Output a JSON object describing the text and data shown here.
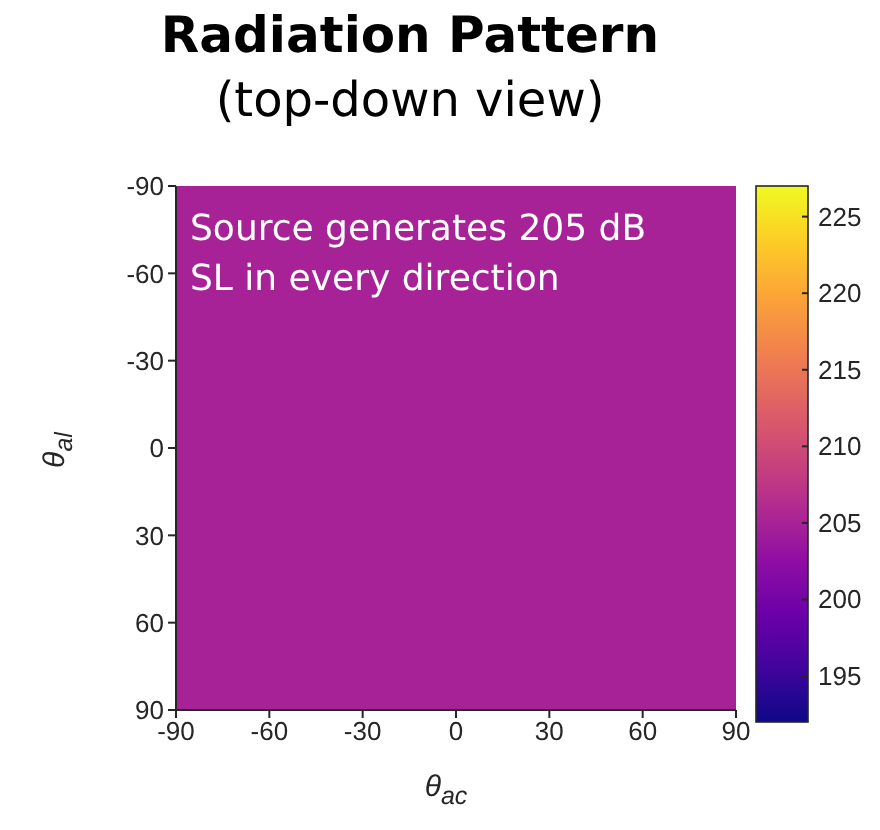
{
  "chart_data": {
    "type": "heatmap",
    "title": "Radiation Pattern",
    "subtitle": "(top-down view)",
    "xlabel": "θ$_{ac}$",
    "ylabel": "θ$_{al}$",
    "cells": [
      [
        205
      ]
    ],
    "xlim": [
      -90,
      90
    ],
    "ylim": [
      90,
      -90
    ],
    "xticks": [
      -90,
      -60,
      -30,
      0,
      30,
      60,
      90
    ],
    "yticks": [
      -90,
      -60,
      -30,
      0,
      30,
      60,
      90
    ],
    "clim": [
      192,
      227
    ],
    "cticks": [
      195,
      200,
      205,
      210,
      215,
      220,
      225
    ],
    "annotations": [
      "Source generates 205 dB SL in every direction"
    ]
  }
}
